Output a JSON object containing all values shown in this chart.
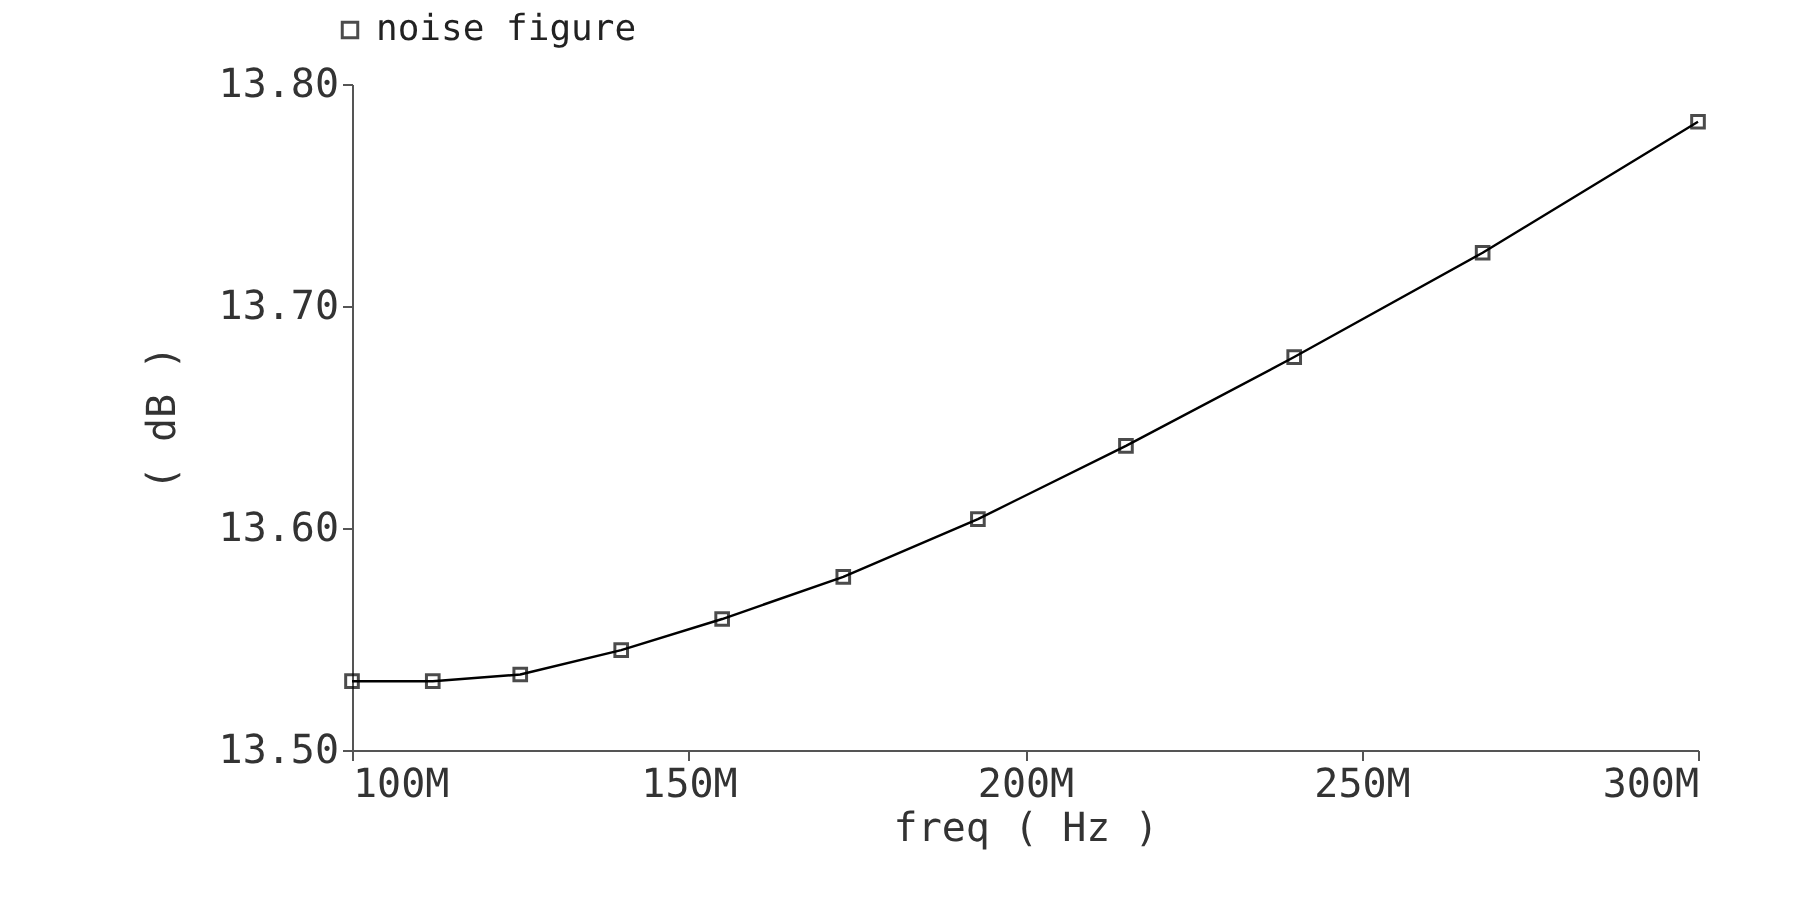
{
  "chart_data": {
    "type": "line",
    "xlabel": "freq ( Hz )",
    "ylabel": "( dB )",
    "x": [
      100000000,
      112000000,
      125000000,
      140000000,
      155000000,
      173000000,
      193000000,
      215000000,
      240000000,
      268000000,
      300000000
    ],
    "series": [
      {
        "name": "noise figure",
        "color": "#000000",
        "values": [
          13.531,
          13.531,
          13.534,
          13.545,
          13.559,
          13.578,
          13.604,
          13.637,
          13.677,
          13.724,
          13.783
        ]
      }
    ],
    "xlim": [
      100000000,
      300000000
    ],
    "xticks": [
      {
        "value": 100000000,
        "label": "100M"
      },
      {
        "value": 150000000,
        "label": "150M"
      },
      {
        "value": 200000000,
        "label": "200M"
      },
      {
        "value": 250000000,
        "label": "250M"
      },
      {
        "value": 300000000,
        "label": "300M"
      }
    ],
    "ylim": [
      13.5,
      13.8
    ],
    "yticks": [
      {
        "value": 13.5,
        "label": "13.50"
      },
      {
        "value": 13.6,
        "label": "13.60"
      },
      {
        "value": 13.7,
        "label": "13.70"
      },
      {
        "value": 13.8,
        "label": "13.80"
      }
    ],
    "grid": false,
    "legend": "top left",
    "marker": "square",
    "line_style": "solid"
  }
}
